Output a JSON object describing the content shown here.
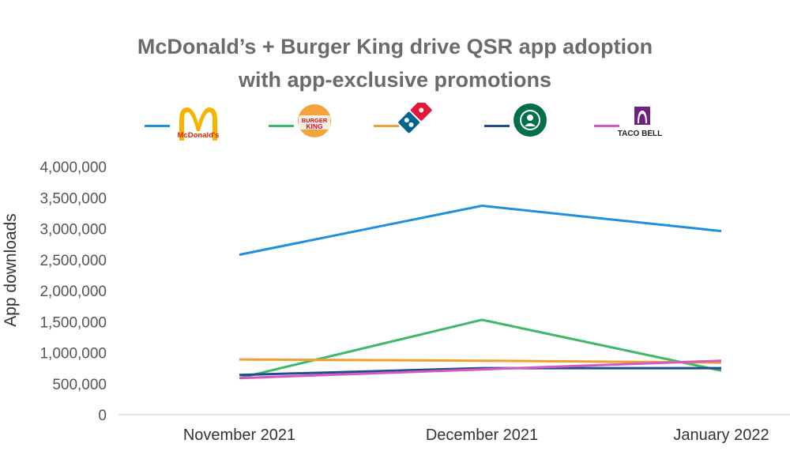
{
  "chart_data": {
    "type": "line",
    "title": "McDonald’s + Burger King drive QSR app adoption",
    "subtitle": "with app-exclusive promotions",
    "ylabel": "App downloads",
    "xlabel": "",
    "categories": [
      "November 2021",
      "December 2021",
      "January 2022"
    ],
    "ylim": [
      0,
      4000000
    ],
    "yticks": [
      0,
      500000,
      1000000,
      1500000,
      2000000,
      2500000,
      3000000,
      3500000,
      4000000
    ],
    "ytick_labels": [
      "0",
      "500,000",
      "1,000,000",
      "1,500,000",
      "2,000,000",
      "2,500,000",
      "3,000,000",
      "3,500,000",
      "4,000,000"
    ],
    "grid": false,
    "legend": "top, shown as brand logos",
    "series": [
      {
        "logo": "mcdonalds-logo",
        "logo_text": "McDonald's",
        "color": "#1f8fe0",
        "values": [
          2580000,
          3370000,
          2960000
        ]
      },
      {
        "logo": "burger-king-logo",
        "logo_text": "BURGER KING",
        "color": "#3dba68",
        "values": [
          590000,
          1530000,
          710000
        ]
      },
      {
        "logo": "dominos-logo",
        "logo_text": "",
        "color": "#f0a030",
        "values": [
          890000,
          870000,
          840000
        ]
      },
      {
        "logo": "starbucks-logo",
        "logo_text": "STARBUCKS COFFEE",
        "color": "#1f4e8c",
        "values": [
          640000,
          750000,
          750000
        ]
      },
      {
        "logo": "taco-bell-logo",
        "logo_text": "TACO BELL",
        "color": "#d659c3",
        "values": [
          590000,
          730000,
          870000
        ]
      }
    ]
  }
}
